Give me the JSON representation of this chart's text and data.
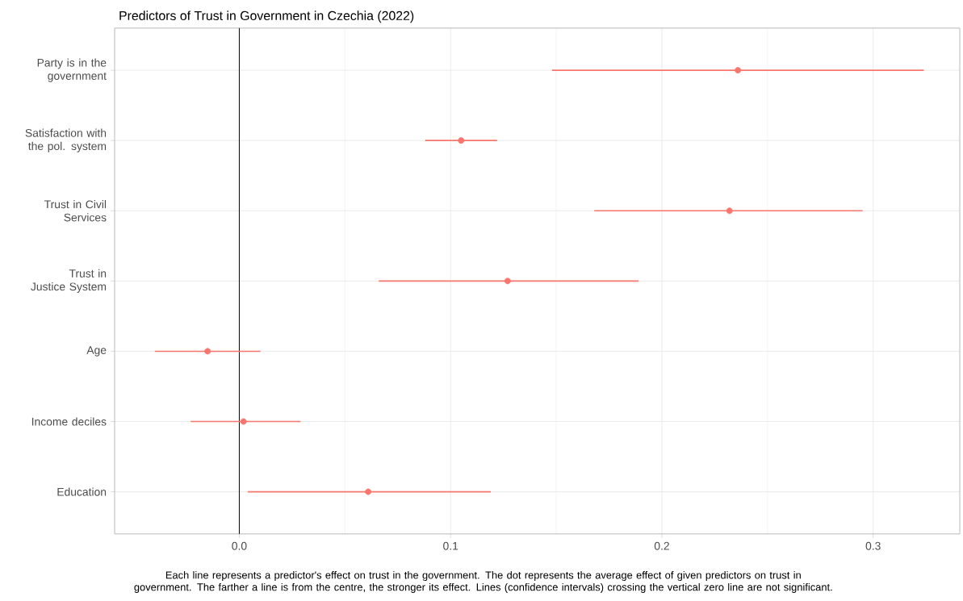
{
  "chart_data": {
    "type": "scatter",
    "orientation": "horizontal",
    "title": "Predictors of Trust in Government in Czechia (2022)",
    "categories": [
      "Party is in the government",
      "Satisfaction with the pol. system",
      "Trust in Civil Services",
      "Trust in Justice System",
      "Age",
      "Income deciles",
      "Education"
    ],
    "values": [
      0.236,
      0.105,
      0.232,
      0.127,
      -0.015,
      0.002,
      0.061
    ],
    "errors": [
      [
        0.148,
        0.324
      ],
      [
        0.088,
        0.122
      ],
      [
        0.168,
        0.295
      ],
      [
        0.066,
        0.189
      ],
      [
        -0.04,
        0.01
      ],
      [
        -0.023,
        0.029
      ],
      [
        0.004,
        0.119
      ]
    ],
    "color": "#f8766d",
    "xlim": [
      -0.059,
      0.341
    ],
    "xticks": [
      {
        "value": 0,
        "label": "0.0"
      },
      0.1,
      0.2,
      0.3
    ],
    "ref_lines": [
      {
        "axis": "x",
        "value": 0,
        "color": "#000000"
      }
    ],
    "grid": true,
    "marker": "circle",
    "annotations": [
      "Each line represents a predictor's effect on trust in the government. The dot represents the average effect of given predictors on trust in government. The farther a line is from the centre, the stronger its effect. Lines (confidence intervals) crossing the vertical zero line are not significant."
    ]
  }
}
